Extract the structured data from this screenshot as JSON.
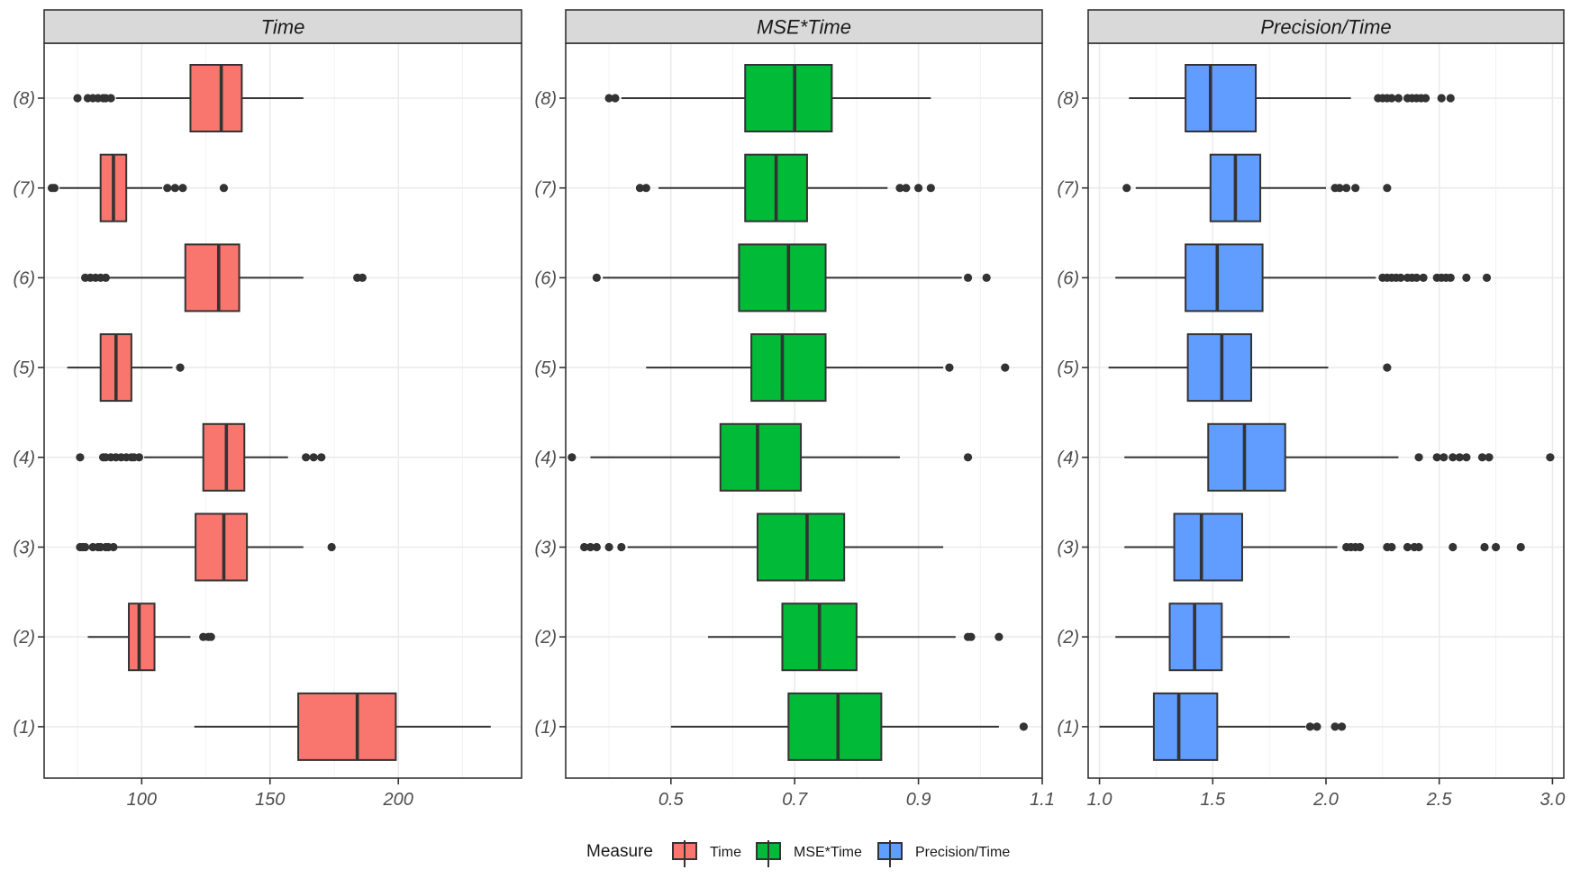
{
  "chart_data": {
    "type": "boxplot",
    "orientation": "horizontal",
    "categories": [
      "(1)",
      "(2)",
      "(3)",
      "(4)",
      "(5)",
      "(6)",
      "(7)",
      "(8)"
    ],
    "legend": {
      "title": "Measure",
      "position": "bottom",
      "entries": [
        {
          "label": "Time",
          "color": "#f8766d"
        },
        {
          "label": "MSE*Time",
          "color": "#00ba38"
        },
        {
          "label": "Precision/Time",
          "color": "#619cff"
        }
      ]
    },
    "panels": [
      {
        "title": "Time",
        "fill": "#f8766d",
        "xlim": [
          62,
          248
        ],
        "xticks": [
          100,
          150,
          200
        ],
        "xtick_labels": [
          "100",
          "150",
          "200"
        ],
        "minor_ticks": [
          75,
          125,
          175,
          225
        ],
        "boxes": [
          {
            "category": "(1)",
            "whisker_low": 120.5,
            "q1": 161,
            "median": 184,
            "q3": 199,
            "whisker_high": 236,
            "outliers": []
          },
          {
            "category": "(2)",
            "whisker_low": 79,
            "q1": 95,
            "median": 99,
            "q3": 105,
            "whisker_high": 119,
            "outliers": [
              124,
              126,
              127
            ]
          },
          {
            "category": "(3)",
            "whisker_low": 90,
            "q1": 121,
            "median": 132,
            "q3": 141,
            "whisker_high": 163,
            "outliers": [
              76,
              77,
              78,
              81,
              83,
              84,
              86,
              87,
              89,
              174
            ]
          },
          {
            "category": "(4)",
            "whisker_low": 101,
            "q1": 124,
            "median": 133,
            "q3": 140,
            "whisker_high": 157,
            "outliers": [
              76,
              85,
              86,
              88,
              90,
              92,
              94,
              96,
              97,
              99,
              164,
              167,
              170
            ]
          },
          {
            "category": "(5)",
            "whisker_low": 71,
            "q1": 84,
            "median": 90,
            "q3": 96,
            "whisker_high": 112,
            "outliers": [
              115
            ]
          },
          {
            "category": "(6)",
            "whisker_low": 86,
            "q1": 117,
            "median": 130,
            "q3": 138,
            "whisker_high": 163,
            "outliers": [
              78,
              80,
              82,
              84,
              86,
              184,
              186
            ]
          },
          {
            "category": "(7)",
            "whisker_low": 68,
            "q1": 84,
            "median": 89,
            "q3": 94,
            "whisker_high": 108,
            "outliers": [
              65,
              66,
              110,
              113,
              116,
              132
            ]
          },
          {
            "category": "(8)",
            "whisker_low": 90,
            "q1": 119,
            "median": 131,
            "q3": 139,
            "whisker_high": 163,
            "outliers": [
              75,
              79,
              81,
              83,
              85,
              86,
              88
            ]
          }
        ]
      },
      {
        "title": "MSE*Time",
        "fill": "#00ba38",
        "xlim": [
          0.33,
          1.1
        ],
        "xticks": [
          0.5,
          0.7,
          0.9,
          1.1
        ],
        "xtick_labels": [
          "0.5",
          "0.7",
          "0.9",
          "1.1"
        ],
        "minor_ticks": [
          0.4,
          0.6,
          0.8,
          1.0
        ],
        "boxes": [
          {
            "category": "(1)",
            "whisker_low": 0.5,
            "q1": 0.69,
            "median": 0.77,
            "q3": 0.84,
            "whisker_high": 1.03,
            "outliers": [
              1.07
            ]
          },
          {
            "category": "(2)",
            "whisker_low": 0.56,
            "q1": 0.68,
            "median": 0.74,
            "q3": 0.8,
            "whisker_high": 0.96,
            "outliers": [
              0.98,
              0.985,
              1.03
            ]
          },
          {
            "category": "(3)",
            "whisker_low": 0.43,
            "q1": 0.64,
            "median": 0.72,
            "q3": 0.78,
            "whisker_high": 0.94,
            "outliers": [
              0.36,
              0.37,
              0.38,
              0.4,
              0.42
            ]
          },
          {
            "category": "(4)",
            "whisker_low": 0.37,
            "q1": 0.58,
            "median": 0.64,
            "q3": 0.71,
            "whisker_high": 0.87,
            "outliers": [
              0.34,
              0.98
            ]
          },
          {
            "category": "(5)",
            "whisker_low": 0.46,
            "q1": 0.63,
            "median": 0.68,
            "q3": 0.75,
            "whisker_high": 0.94,
            "outliers": [
              0.95,
              1.04
            ]
          },
          {
            "category": "(6)",
            "whisker_low": 0.39,
            "q1": 0.61,
            "median": 0.69,
            "q3": 0.75,
            "whisker_high": 0.97,
            "outliers": [
              0.38,
              0.98,
              1.01
            ]
          },
          {
            "category": "(7)",
            "whisker_low": 0.48,
            "q1": 0.62,
            "median": 0.67,
            "q3": 0.72,
            "whisker_high": 0.85,
            "outliers": [
              0.45,
              0.46,
              0.87,
              0.88,
              0.9,
              0.92
            ]
          },
          {
            "category": "(8)",
            "whisker_low": 0.42,
            "q1": 0.62,
            "median": 0.7,
            "q3": 0.76,
            "whisker_high": 0.92,
            "outliers": [
              0.4,
              0.41
            ]
          }
        ]
      },
      {
        "title": "Precision/Time",
        "fill": "#619cff",
        "xlim": [
          0.95,
          3.05
        ],
        "xticks": [
          1.0,
          1.5,
          2.0,
          2.5,
          3.0
        ],
        "xtick_labels": [
          "1.0",
          "1.5",
          "2.0",
          "2.5",
          "3.0"
        ],
        "minor_ticks": [
          1.25,
          1.75,
          2.25,
          2.75
        ],
        "boxes": [
          {
            "category": "(1)",
            "whisker_low": 1.0,
            "q1": 1.24,
            "median": 1.35,
            "q3": 1.52,
            "whisker_high": 1.91,
            "outliers": [
              1.93,
              1.96,
              2.04,
              2.07
            ]
          },
          {
            "category": "(2)",
            "whisker_low": 1.07,
            "q1": 1.31,
            "median": 1.42,
            "q3": 1.54,
            "whisker_high": 1.84,
            "outliers": []
          },
          {
            "category": "(3)",
            "whisker_low": 1.11,
            "q1": 1.33,
            "median": 1.45,
            "q3": 1.63,
            "whisker_high": 2.05,
            "outliers": [
              2.09,
              2.11,
              2.13,
              2.15,
              2.27,
              2.29,
              2.36,
              2.39,
              2.41,
              2.56,
              2.7,
              2.75,
              2.86
            ]
          },
          {
            "category": "(4)",
            "whisker_low": 1.11,
            "q1": 1.48,
            "median": 1.64,
            "q3": 1.82,
            "whisker_high": 2.32,
            "outliers": [
              2.41,
              2.49,
              2.52,
              2.56,
              2.59,
              2.62,
              2.69,
              2.72,
              2.99
            ]
          },
          {
            "category": "(5)",
            "whisker_low": 1.04,
            "q1": 1.39,
            "median": 1.54,
            "q3": 1.67,
            "whisker_high": 2.01,
            "outliers": [
              2.27
            ]
          },
          {
            "category": "(6)",
            "whisker_low": 1.07,
            "q1": 1.38,
            "median": 1.52,
            "q3": 1.72,
            "whisker_high": 2.22,
            "outliers": [
              2.25,
              2.27,
              2.29,
              2.31,
              2.33,
              2.36,
              2.38,
              2.4,
              2.43,
              2.49,
              2.51,
              2.53,
              2.55,
              2.62,
              2.71
            ]
          },
          {
            "category": "(7)",
            "whisker_low": 1.16,
            "q1": 1.49,
            "median": 1.6,
            "q3": 1.71,
            "whisker_high": 2.0,
            "outliers": [
              1.12,
              2.04,
              2.06,
              2.09,
              2.13,
              2.27
            ]
          },
          {
            "category": "(8)",
            "whisker_low": 1.13,
            "q1": 1.38,
            "median": 1.49,
            "q3": 1.69,
            "whisker_high": 2.11,
            "outliers": [
              2.23,
              2.25,
              2.27,
              2.29,
              2.32,
              2.36,
              2.38,
              2.4,
              2.42,
              2.44,
              2.51,
              2.55
            ]
          }
        ]
      }
    ]
  }
}
